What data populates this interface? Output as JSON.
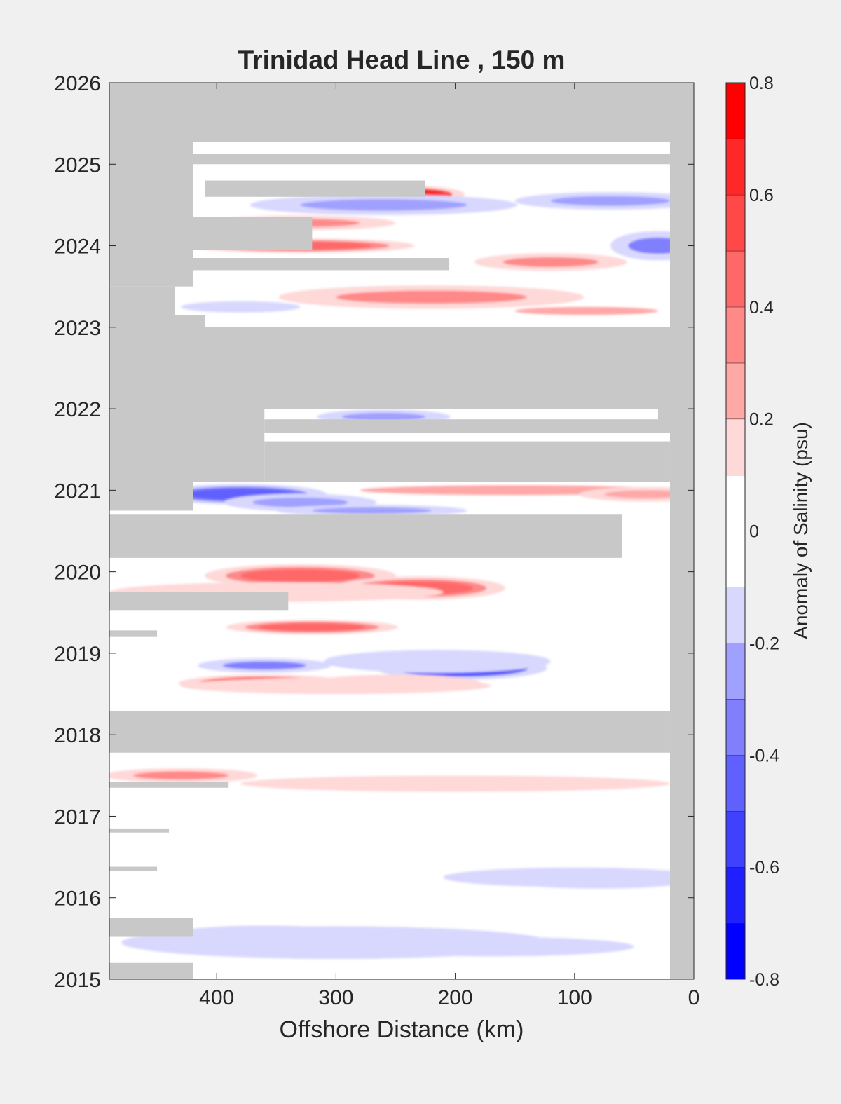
{
  "chart_data": {
    "type": "heatmap",
    "title": "Trinidad Head Line , 150 m",
    "xlabel": "Offshore Distance (km)",
    "ylabel": "",
    "xlim": [
      490,
      0
    ],
    "x_reversed": true,
    "ylim": [
      2015,
      2026
    ],
    "x_ticks": [
      400,
      300,
      200,
      100,
      0
    ],
    "y_ticks": [
      2015,
      2016,
      2017,
      2018,
      2019,
      2020,
      2021,
      2022,
      2023,
      2024,
      2025,
      2026
    ],
    "grid": false,
    "colorbar": {
      "label": "Anomaly of Salinity (psu)",
      "limits": [
        -0.8,
        0.8
      ],
      "ticks": [
        -0.8,
        -0.6,
        -0.4,
        -0.2,
        0,
        0.2,
        0.4,
        0.6,
        0.8
      ],
      "levels": [
        {
          "from": -0.8,
          "to": -0.7,
          "color": "#0000ff"
        },
        {
          "from": -0.7,
          "to": -0.6,
          "color": "#2020ff"
        },
        {
          "from": -0.6,
          "to": -0.5,
          "color": "#4040ff"
        },
        {
          "from": -0.5,
          "to": -0.4,
          "color": "#6060ff"
        },
        {
          "from": -0.4,
          "to": -0.3,
          "color": "#8080ff"
        },
        {
          "from": -0.3,
          "to": -0.2,
          "color": "#a0a0ff"
        },
        {
          "from": -0.2,
          "to": -0.1,
          "color": "#d8d8ff"
        },
        {
          "from": -0.1,
          "to": 0.0,
          "color": "#ffffff"
        },
        {
          "from": 0.0,
          "to": 0.1,
          "color": "#ffffff"
        },
        {
          "from": 0.1,
          "to": 0.2,
          "color": "#ffd8d8"
        },
        {
          "from": 0.2,
          "to": 0.3,
          "color": "#ffa8a8"
        },
        {
          "from": 0.3,
          "to": 0.4,
          "color": "#ff8888"
        },
        {
          "from": 0.4,
          "to": 0.5,
          "color": "#ff6868"
        },
        {
          "from": 0.5,
          "to": 0.6,
          "color": "#ff4848"
        },
        {
          "from": 0.6,
          "to": 0.7,
          "color": "#ff2828"
        },
        {
          "from": 0.7,
          "to": 0.8,
          "color": "#ff0000"
        }
      ]
    },
    "no_data_color": "#c8c8c8",
    "no_data_regions": [
      {
        "x": [
          490,
          0
        ],
        "y": [
          2025.27,
          2026
        ]
      },
      {
        "x": [
          490,
          20
        ],
        "y": [
          2025.0,
          2025.13
        ]
      },
      {
        "x": [
          490,
          420
        ],
        "y": [
          2023.5,
          2025.27
        ]
      },
      {
        "x": [
          410,
          225
        ],
        "y": [
          2024.6,
          2024.8
        ]
      },
      {
        "x": [
          420,
          320
        ],
        "y": [
          2023.95,
          2024.35
        ]
      },
      {
        "x": [
          420,
          205
        ],
        "y": [
          2023.7,
          2023.85
        ]
      },
      {
        "x": [
          490,
          435
        ],
        "y": [
          2023.1,
          2023.5
        ]
      },
      {
        "x": [
          490,
          410
        ],
        "y": [
          2023.0,
          2023.15
        ]
      },
      {
        "x": [
          490,
          0
        ],
        "y": [
          2022.0,
          2023.0
        ]
      },
      {
        "x": [
          490,
          360
        ],
        "y": [
          2021.1,
          2022.0
        ]
      },
      {
        "x": [
          360,
          20
        ],
        "y": [
          2021.7,
          2021.87
        ]
      },
      {
        "x": [
          30,
          0
        ],
        "y": [
          2021.7,
          2022.0
        ]
      },
      {
        "x": [
          360,
          20
        ],
        "y": [
          2021.1,
          2021.6
        ]
      },
      {
        "x": [
          490,
          420
        ],
        "y": [
          2020.75,
          2021.1
        ]
      },
      {
        "x": [
          490,
          60
        ],
        "y": [
          2020.17,
          2020.7
        ]
      },
      {
        "x": [
          490,
          340
        ],
        "y": [
          2019.53,
          2019.75
        ]
      },
      {
        "x": [
          490,
          450
        ],
        "y": [
          2019.2,
          2019.28
        ]
      },
      {
        "x": [
          490,
          20
        ],
        "y": [
          2017.78,
          2018.29
        ]
      },
      {
        "x": [
          490,
          390
        ],
        "y": [
          2017.35,
          2017.42
        ]
      },
      {
        "x": [
          490,
          440
        ],
        "y": [
          2016.8,
          2016.85
        ]
      },
      {
        "x": [
          490,
          450
        ],
        "y": [
          2016.33,
          2016.38
        ]
      },
      {
        "x": [
          490,
          420
        ],
        "y": [
          2015.52,
          2015.75
        ]
      },
      {
        "x": [
          490,
          420
        ],
        "y": [
          2015.0,
          2015.2
        ]
      },
      {
        "x": [
          20,
          0
        ],
        "y": [
          2015.0,
          2026.0
        ]
      }
    ],
    "anomaly_features": [
      {
        "x": 240,
        "y": 2024.63,
        "rx": 30,
        "ry": 0.06,
        "value": 0.6
      },
      {
        "x": 260,
        "y": 2024.5,
        "rx": 70,
        "ry": 0.07,
        "value": -0.3
      },
      {
        "x": 70,
        "y": 2024.55,
        "rx": 50,
        "ry": 0.06,
        "value": -0.3
      },
      {
        "x": 30,
        "y": 2024.0,
        "rx": 25,
        "ry": 0.1,
        "value": -0.35
      },
      {
        "x": 330,
        "y": 2024.28,
        "rx": 50,
        "ry": 0.05,
        "value": 0.3
      },
      {
        "x": 330,
        "y": 2024.0,
        "rx": 60,
        "ry": 0.05,
        "value": 0.4
      },
      {
        "x": 120,
        "y": 2023.8,
        "rx": 40,
        "ry": 0.06,
        "value": 0.3
      },
      {
        "x": 220,
        "y": 2023.37,
        "rx": 80,
        "ry": 0.08,
        "value": 0.3
      },
      {
        "x": 380,
        "y": 2023.25,
        "rx": 50,
        "ry": 0.07,
        "value": -0.2
      },
      {
        "x": 90,
        "y": 2023.2,
        "rx": 60,
        "ry": 0.05,
        "value": 0.2
      },
      {
        "x": 260,
        "y": 2021.9,
        "rx": 35,
        "ry": 0.05,
        "value": -0.3
      },
      {
        "x": 380,
        "y": 2020.95,
        "rx": 45,
        "ry": 0.07,
        "value": -0.5
      },
      {
        "x": 330,
        "y": 2020.85,
        "rx": 40,
        "ry": 0.06,
        "value": -0.3
      },
      {
        "x": 270,
        "y": 2020.75,
        "rx": 50,
        "ry": 0.04,
        "value": -0.3
      },
      {
        "x": 150,
        "y": 2021.0,
        "rx": 130,
        "ry": 0.06,
        "value": 0.2
      },
      {
        "x": 40,
        "y": 2020.95,
        "rx": 35,
        "ry": 0.05,
        "value": 0.25
      },
      {
        "x": 330,
        "y": 2019.95,
        "rx": 50,
        "ry": 0.08,
        "value": 0.4
      },
      {
        "x": 230,
        "y": 2019.8,
        "rx": 45,
        "ry": 0.08,
        "value": 0.4
      },
      {
        "x": 350,
        "y": 2019.75,
        "rx": 140,
        "ry": 0.12,
        "value": 0.15
      },
      {
        "x": 320,
        "y": 2019.32,
        "rx": 45,
        "ry": 0.05,
        "value": 0.4
      },
      {
        "x": 195,
        "y": 2018.82,
        "rx": 45,
        "ry": 0.08,
        "value": -0.6
      },
      {
        "x": 215,
        "y": 2018.9,
        "rx": 95,
        "ry": 0.14,
        "value": -0.2
      },
      {
        "x": 360,
        "y": 2018.85,
        "rx": 35,
        "ry": 0.05,
        "value": -0.35
      },
      {
        "x": 360,
        "y": 2018.63,
        "rx": 45,
        "ry": 0.06,
        "value": 0.6
      },
      {
        "x": 250,
        "y": 2018.63,
        "rx": 45,
        "ry": 0.06,
        "value": 0.35
      },
      {
        "x": 300,
        "y": 2018.6,
        "rx": 130,
        "ry": 0.1,
        "value": 0.15
      },
      {
        "x": 200,
        "y": 2017.4,
        "rx": 180,
        "ry": 0.1,
        "value": 0.15
      },
      {
        "x": 80,
        "y": 2016.22,
        "rx": 50,
        "ry": 0.06,
        "value": -0.35
      },
      {
        "x": 100,
        "y": 2016.25,
        "rx": 110,
        "ry": 0.12,
        "value": -0.15
      },
      {
        "x": 360,
        "y": 2015.48,
        "rx": 60,
        "ry": 0.1,
        "value": -0.4
      },
      {
        "x": 300,
        "y": 2015.45,
        "rx": 180,
        "ry": 0.2,
        "value": -0.2
      },
      {
        "x": 170,
        "y": 2015.4,
        "rx": 120,
        "ry": 0.12,
        "value": -0.15
      },
      {
        "x": 430,
        "y": 2017.5,
        "rx": 40,
        "ry": 0.05,
        "value": 0.3
      }
    ]
  }
}
